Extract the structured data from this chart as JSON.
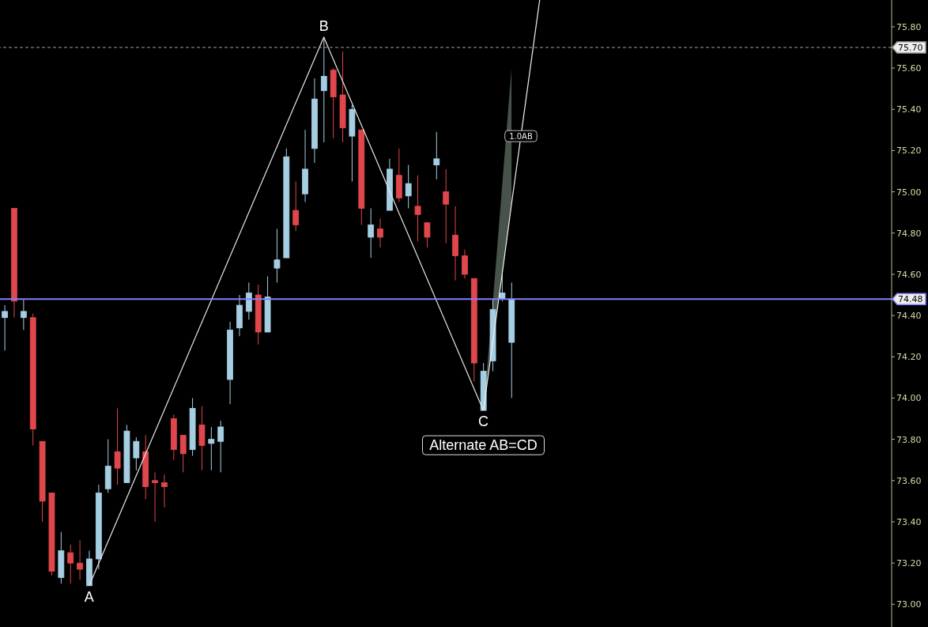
{
  "chart_data": {
    "type": "candlestick",
    "categories": [
      null,
      null,
      null,
      null,
      null,
      null,
      null,
      null,
      null,
      null,
      null,
      null,
      null,
      null,
      null,
      null,
      null,
      null,
      null,
      null,
      null,
      null,
      null,
      null,
      null,
      null,
      null,
      null,
      null,
      null,
      null,
      null,
      null,
      null,
      null,
      null,
      null,
      null,
      null,
      null,
      null,
      null,
      null,
      null,
      null,
      null,
      null,
      null,
      null,
      null,
      null,
      null,
      null,
      null,
      null,
      null,
      null,
      null,
      null,
      null,
      null,
      null,
      null,
      null,
      null,
      null,
      null,
      null,
      null,
      null,
      null,
      null,
      null,
      null,
      null,
      null,
      null,
      null,
      null,
      null,
      null,
      null,
      null,
      null,
      null,
      null,
      null,
      null,
      null,
      null,
      null,
      null,
      null,
      null,
      null
    ],
    "ohlc": [
      [
        74.39,
        74.45,
        74.23,
        74.42
      ],
      [
        74.92,
        74.92,
        74.39,
        74.47
      ],
      [
        74.39,
        74.48,
        74.33,
        74.42
      ],
      [
        74.39,
        74.41,
        73.77,
        73.85
      ],
      [
        73.79,
        73.79,
        73.4,
        73.5
      ],
      [
        73.54,
        73.54,
        73.14,
        73.16
      ],
      [
        73.13,
        73.35,
        73.1,
        73.26
      ],
      [
        73.25,
        73.29,
        73.1,
        73.2
      ],
      [
        73.2,
        73.31,
        73.12,
        73.17
      ],
      [
        73.09,
        73.26,
        73.09,
        73.22
      ],
      [
        73.22,
        73.58,
        73.17,
        73.54
      ],
      [
        73.56,
        73.8,
        73.54,
        73.67
      ],
      [
        73.74,
        73.95,
        73.58,
        73.66
      ],
      [
        73.59,
        73.87,
        73.59,
        73.84
      ],
      [
        73.71,
        73.81,
        73.65,
        73.79
      ],
      [
        73.74,
        73.82,
        73.51,
        73.57
      ],
      [
        73.6,
        73.64,
        73.4,
        73.59
      ],
      [
        73.59,
        73.63,
        73.47,
        73.57
      ],
      [
        73.9,
        73.92,
        73.7,
        73.75
      ],
      [
        73.82,
        73.82,
        73.64,
        73.73
      ],
      [
        73.75,
        74.0,
        73.72,
        73.95
      ],
      [
        73.87,
        73.96,
        73.65,
        73.77
      ],
      [
        73.78,
        73.86,
        73.65,
        73.8
      ],
      [
        73.79,
        73.89,
        73.64,
        73.86
      ],
      [
        74.09,
        74.37,
        73.97,
        74.33
      ],
      [
        74.34,
        74.5,
        74.3,
        74.45
      ],
      [
        74.42,
        74.56,
        74.38,
        74.51
      ],
      [
        74.5,
        74.55,
        74.26,
        74.32
      ],
      [
        74.32,
        74.59,
        74.32,
        74.49
      ],
      [
        74.63,
        74.82,
        74.56,
        74.67
      ],
      [
        74.68,
        75.21,
        74.68,
        75.17
      ],
      [
        74.91,
        75.05,
        74.81,
        74.84
      ],
      [
        74.99,
        75.3,
        74.95,
        75.11
      ],
      [
        75.21,
        75.55,
        75.14,
        75.45
      ],
      [
        75.49,
        75.75,
        75.24,
        75.56
      ],
      [
        75.59,
        75.6,
        75.26,
        75.46
      ],
      [
        75.47,
        75.68,
        75.24,
        75.31
      ],
      [
        75.27,
        75.42,
        75.05,
        75.4
      ],
      [
        75.3,
        75.3,
        74.84,
        74.92
      ],
      [
        74.78,
        74.92,
        74.68,
        74.84
      ],
      [
        74.82,
        74.87,
        74.73,
        74.78
      ],
      [
        74.91,
        75.16,
        74.91,
        75.11
      ],
      [
        75.08,
        75.21,
        74.95,
        74.97
      ],
      [
        74.98,
        75.13,
        74.92,
        75.04
      ],
      [
        74.93,
        75.08,
        74.76,
        74.89
      ],
      [
        74.85,
        74.85,
        74.73,
        74.78
      ],
      [
        75.13,
        75.29,
        75.06,
        75.16
      ],
      [
        75.0,
        75.11,
        74.75,
        74.94
      ],
      [
        74.79,
        74.93,
        74.57,
        74.69
      ],
      [
        74.69,
        74.72,
        74.58,
        74.6
      ],
      [
        74.58,
        74.58,
        74.08,
        74.17
      ],
      [
        73.94,
        74.17,
        73.94,
        74.13
      ],
      [
        74.18,
        74.48,
        74.13,
        74.43
      ],
      [
        74.48,
        74.62,
        74.47,
        74.51
      ],
      [
        74.27,
        74.56,
        74.0,
        74.48
      ],
      null,
      null,
      null,
      null,
      null,
      null,
      null,
      null,
      null,
      null,
      null,
      null,
      null,
      null,
      null,
      null,
      null,
      null,
      null,
      null,
      null,
      null,
      null,
      null,
      null,
      null,
      null,
      null,
      null,
      null,
      null,
      null,
      null,
      null,
      null,
      null,
      null,
      null,
      null,
      null
    ],
    "colors": [
      "#a6cee3",
      "#e0474c",
      "#a6cee3",
      "#e0474c",
      "#e0474c",
      "#e0474c",
      "#a6cee3",
      "#e0474c",
      "#e0474c",
      "#a6cee3",
      "#a6cee3",
      "#a6cee3",
      "#e0474c",
      "#a6cee3",
      "#a6cee3",
      "#e0474c",
      "#e0474c",
      "#e0474c",
      "#e0474c",
      "#e0474c",
      "#a6cee3",
      "#e0474c",
      "#a6cee3",
      "#a6cee3",
      "#a6cee3",
      "#a6cee3",
      "#a6cee3",
      "#e0474c",
      "#a6cee3",
      "#a6cee3",
      "#a6cee3",
      "#e0474c",
      "#a6cee3",
      "#a6cee3",
      "#a6cee3",
      "#e0474c",
      "#e0474c",
      "#a6cee3",
      "#e0474c",
      "#a6cee3",
      "#e0474c",
      "#a6cee3",
      "#e0474c",
      "#a6cee3",
      "#e0474c",
      "#e0474c",
      "#a6cee3",
      "#e0474c",
      "#e0474c",
      "#e0474c",
      "#e0474c",
      "#a6cee3",
      "#a6cee3",
      "#a6cee3",
      "#a6cee3",
      null,
      null,
      null,
      null,
      null,
      null,
      null,
      null,
      null,
      null,
      null,
      null,
      null,
      null,
      null,
      null,
      null,
      null,
      null,
      null,
      null,
      null,
      null,
      null,
      null,
      null,
      null,
      null,
      null,
      null,
      null,
      null,
      null,
      null,
      null,
      null,
      null,
      null,
      null,
      null
    ],
    "series": [
      {
        "type": "line",
        "color": "#e8e8e8",
        "values": [
          null,
          null,
          null,
          null,
          null,
          null,
          null,
          null,
          null,
          73.09,
          null,
          null,
          null,
          null,
          null,
          null,
          null,
          null,
          null,
          null,
          null,
          null,
          null,
          null,
          null,
          null,
          null,
          null,
          null,
          null,
          null,
          null,
          null,
          null,
          75.75,
          null,
          null,
          null,
          null,
          null,
          null,
          null,
          null,
          null,
          null,
          null,
          null,
          null,
          null,
          null,
          null,
          73.94,
          null,
          null,
          null,
          null,
          null,
          null,
          null,
          null,
          null,
          null,
          null,
          null,
          null,
          null,
          null,
          null,
          null,
          null,
          null,
          null,
          null,
          null,
          null,
          null,
          null,
          null,
          null,
          null,
          null,
          null,
          null,
          null,
          null,
          null,
          null,
          null,
          null,
          null,
          null,
          null,
          null,
          null,
          null
        ],
        "value_labels": [
          null,
          null,
          null,
          null,
          null,
          null,
          null,
          null,
          null,
          "A",
          null,
          null,
          null,
          null,
          null,
          null,
          null,
          null,
          null,
          null,
          null,
          null,
          null,
          null,
          null,
          null,
          null,
          null,
          null,
          null,
          null,
          null,
          null,
          null,
          "B",
          null,
          null,
          null,
          null,
          null,
          null,
          null,
          null,
          null,
          null,
          null,
          null,
          null,
          null,
          null,
          null,
          "C",
          null,
          null,
          null,
          null,
          null,
          null,
          null,
          null,
          null,
          null,
          null,
          null,
          null,
          null,
          null,
          null,
          null,
          null,
          null,
          null,
          null,
          null,
          null,
          null,
          null,
          null,
          null,
          null,
          null,
          null,
          null,
          null,
          null,
          null,
          null,
          null,
          null,
          null,
          null,
          null,
          null,
          null,
          null
        ]
      },
      {
        "type": "line",
        "color": "#f0f0f0",
        "values": [
          null,
          null,
          null,
          null,
          null,
          null,
          null,
          null,
          null,
          null,
          null,
          null,
          null,
          null,
          null,
          null,
          null,
          null,
          null,
          null,
          null,
          null,
          null,
          null,
          null,
          null,
          null,
          null,
          null,
          null,
          null,
          null,
          null,
          null,
          null,
          null,
          null,
          null,
          null,
          null,
          null,
          null,
          null,
          null,
          null,
          null,
          null,
          null,
          null,
          null,
          null,
          73.94,
          74.27,
          74.6,
          74.94,
          75.27,
          75.6,
          75.93,
          null,
          null,
          null,
          null,
          null,
          null,
          null,
          null,
          null,
          null,
          null,
          null,
          null,
          null,
          null,
          null,
          null,
          null,
          null,
          null,
          null,
          null,
          null,
          null,
          null,
          null,
          null,
          null,
          null,
          null,
          null,
          null,
          null,
          null,
          null,
          null,
          null
        ],
        "lower": [
          null,
          null,
          null,
          null,
          null,
          null,
          null,
          null,
          null,
          null,
          null,
          null,
          null,
          null,
          null,
          null,
          null,
          null,
          null,
          null,
          null,
          null,
          null,
          null,
          null,
          null,
          null,
          null,
          null,
          null,
          null,
          null,
          null,
          null,
          null,
          null,
          null,
          null,
          null,
          null,
          null,
          null,
          null,
          null,
          null,
          null,
          null,
          null,
          null,
          null,
          null,
          73.94,
          74.27,
          74.6,
          74.94,
          null,
          null,
          null,
          null,
          null,
          null,
          null,
          null,
          null,
          null,
          null,
          null,
          null,
          null,
          null,
          null,
          null,
          null,
          null,
          null,
          null,
          null,
          null,
          null,
          null,
          null,
          null,
          null,
          null,
          null,
          null,
          null,
          null,
          null,
          null,
          null,
          null,
          null,
          null,
          null
        ],
        "upper": [
          null,
          null,
          null,
          null,
          null,
          null,
          null,
          null,
          null,
          null,
          null,
          null,
          null,
          null,
          null,
          null,
          null,
          null,
          null,
          null,
          null,
          null,
          null,
          null,
          null,
          null,
          null,
          null,
          null,
          null,
          null,
          null,
          null,
          null,
          null,
          null,
          null,
          null,
          null,
          null,
          null,
          null,
          null,
          null,
          null,
          null,
          null,
          null,
          null,
          null,
          null,
          73.94,
          74.46,
          75.03,
          75.6,
          null,
          null,
          null,
          null,
          null,
          null,
          null,
          null,
          null,
          null,
          null,
          null,
          null,
          null,
          null,
          null,
          null,
          null,
          null,
          null,
          null,
          null,
          null,
          null,
          null,
          null,
          null,
          null,
          null,
          null,
          null,
          null,
          null,
          null,
          null,
          null,
          null,
          null,
          null,
          null
        ]
      }
    ],
    "annotations": [
      "Alternate AB=CD",
      {
        "text": "1.0AB",
        "y": 75.27
      }
    ],
    "ylim": [
      72.89,
      75.93
    ],
    "yticks": [
      {
        "value": 73.0,
        "label": "73.00"
      },
      {
        "value": 73.2,
        "label": "73.20"
      },
      {
        "value": 73.4,
        "label": "73.40"
      },
      {
        "value": 73.6,
        "label": "73.60"
      },
      {
        "value": 73.8,
        "label": "73.80"
      },
      {
        "value": 74.0,
        "label": "74.00"
      },
      {
        "value": 74.2,
        "label": "74.20"
      },
      {
        "value": 74.4,
        "label": "74.40"
      },
      {
        "value": 74.6,
        "label": "74.60"
      },
      {
        "value": 74.8,
        "label": "74.80"
      },
      {
        "value": 75.0,
        "label": "75.00"
      },
      {
        "value": 75.2,
        "label": "75.20"
      },
      {
        "value": 75.4,
        "label": "75.40"
      },
      {
        "value": 75.6,
        "label": "75.60"
      },
      {
        "value": 75.8,
        "label": "75.80"
      }
    ],
    "ref_lines": [
      {
        "axis": "y",
        "value": 75.7,
        "label": "75.70",
        "color": "#a0a0a0",
        "line_style": "dashed"
      },
      {
        "axis": "y",
        "value": 74.48,
        "label": "74.48",
        "color": "#8080ff",
        "line_style": "solid"
      }
    ],
    "tick_labels": "y",
    "grid": false,
    "legend": false
  }
}
